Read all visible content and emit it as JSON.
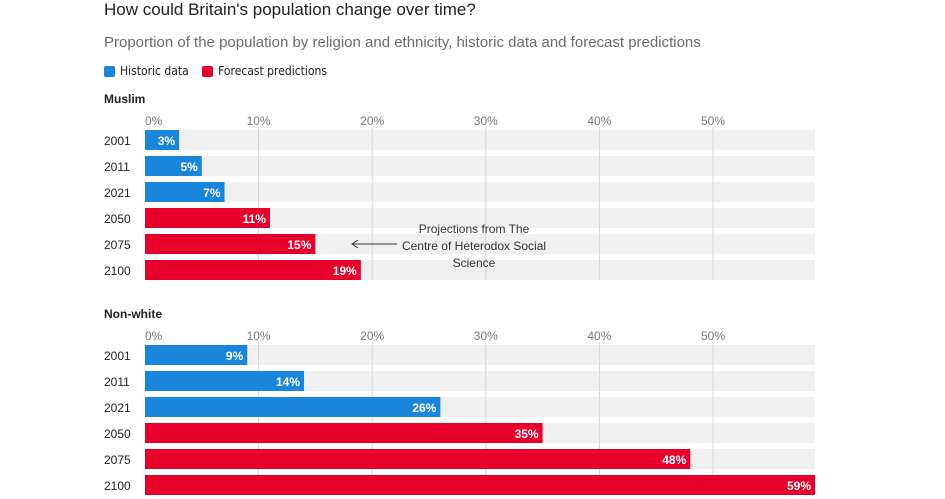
{
  "header": {
    "title": "How could Britain's population change over time?",
    "subtitle": "Proportion of the population by religion and ethnicity, historic data and forecast predictions"
  },
  "legend": {
    "items": [
      {
        "label": "Historic data",
        "color": "#1a86db"
      },
      {
        "label": "Forecast predictions",
        "color": "#e8002d"
      }
    ]
  },
  "annotation": {
    "lines": [
      "Projections from The",
      "Centre of Heterodox Social",
      "Science"
    ]
  },
  "chart_data": [
    {
      "type": "bar",
      "orientation": "horizontal",
      "title": "Muslim",
      "categories": [
        "2001",
        "2011",
        "2021",
        "2050",
        "2075",
        "2100"
      ],
      "values": [
        3,
        5,
        7,
        11,
        15,
        19
      ],
      "value_labels": [
        "3%",
        "5%",
        "7%",
        "11%",
        "15%",
        "19%"
      ],
      "kinds": [
        "historic",
        "historic",
        "historic",
        "forecast",
        "forecast",
        "forecast"
      ],
      "xlim": [
        0,
        59
      ],
      "ticks": [
        0,
        10,
        20,
        30,
        40,
        50
      ],
      "tick_labels": [
        "0%",
        "10%",
        "20%",
        "30%",
        "40%",
        "50%"
      ],
      "colors": {
        "historic": "#1a86db",
        "forecast": "#e8002d"
      }
    },
    {
      "type": "bar",
      "orientation": "horizontal",
      "title": "Non-white",
      "categories": [
        "2001",
        "2011",
        "2021",
        "2050",
        "2075",
        "2100"
      ],
      "values": [
        9,
        14,
        26,
        35,
        48,
        59
      ],
      "value_labels": [
        "9%",
        "14%",
        "26%",
        "35%",
        "48%",
        "59%"
      ],
      "kinds": [
        "historic",
        "historic",
        "historic",
        "forecast",
        "forecast",
        "forecast"
      ],
      "xlim": [
        0,
        59
      ],
      "ticks": [
        0,
        10,
        20,
        30,
        40,
        50
      ],
      "tick_labels": [
        "0%",
        "10%",
        "20%",
        "30%",
        "40%",
        "50%"
      ],
      "colors": {
        "historic": "#1a86db",
        "forecast": "#e8002d"
      }
    }
  ]
}
